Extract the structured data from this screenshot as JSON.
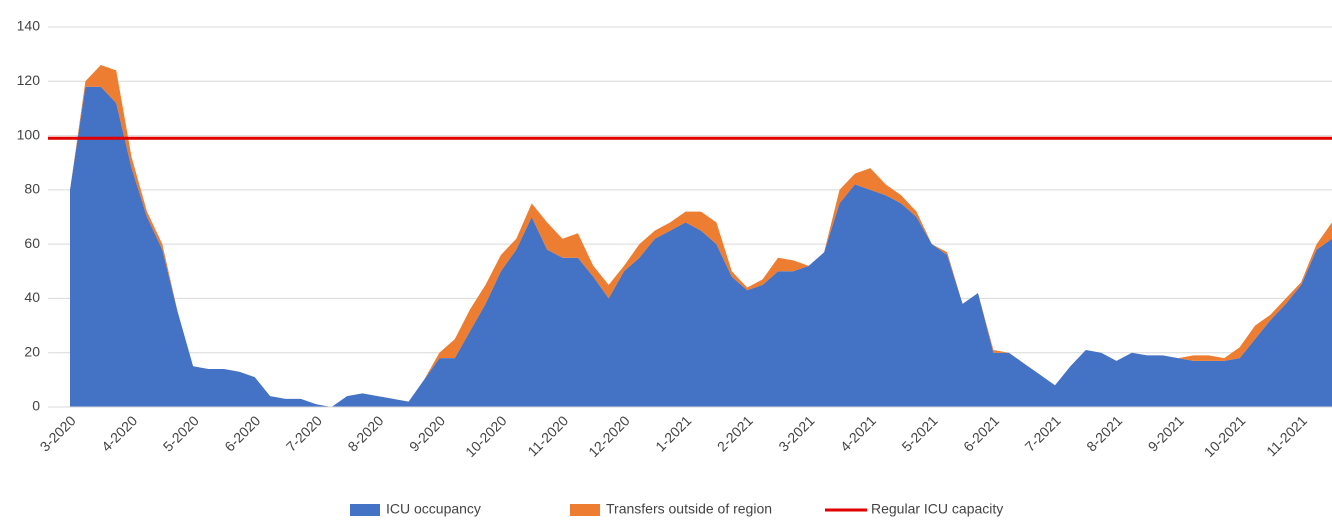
{
  "chart_data": {
    "type": "stacked-area",
    "categories": [
      "3-2020",
      null,
      null,
      null,
      "4-2020",
      null,
      null,
      null,
      "5-2020",
      null,
      null,
      null,
      "6-2020",
      null,
      null,
      null,
      "7-2020",
      null,
      null,
      null,
      "8-2020",
      null,
      null,
      null,
      "9-2020",
      null,
      null,
      null,
      "10-2020",
      null,
      null,
      null,
      "11-2020",
      null,
      null,
      null,
      "12-2020",
      null,
      null,
      null,
      "1-2021",
      null,
      null,
      null,
      "2-2021",
      null,
      null,
      null,
      "3-2021",
      null,
      null,
      null,
      "4-2021",
      null,
      null,
      null,
      "5-2021",
      null,
      null,
      null,
      "6-2021",
      null,
      null,
      null,
      "7-2021",
      null,
      null,
      null,
      "8-2021",
      null,
      null,
      null,
      "9-2021",
      null,
      null,
      null,
      "10-2021",
      null,
      null,
      null,
      "11-2021",
      null,
      null
    ],
    "series": [
      {
        "name": "ICU occupancy",
        "color": "#4472c4",
        "values": [
          80,
          118,
          118,
          112,
          88,
          70,
          58,
          35,
          15,
          14,
          14,
          13,
          11,
          4,
          3,
          3,
          1,
          0,
          4,
          5,
          4,
          3,
          2,
          10,
          18,
          18,
          28,
          38,
          50,
          58,
          70,
          58,
          55,
          55,
          48,
          40,
          50,
          55,
          62,
          65,
          68,
          65,
          60,
          48,
          43,
          45,
          50,
          50,
          52,
          57,
          75,
          82,
          80,
          78,
          75,
          70,
          60,
          56,
          38,
          42,
          20,
          20,
          16,
          12,
          8,
          15,
          21,
          20,
          17,
          20,
          19,
          19,
          18,
          17,
          17,
          17,
          18,
          25,
          32,
          38,
          45,
          58,
          62
        ]
      },
      {
        "name": "Transfers outside of region",
        "color": "#ed7d31",
        "values": [
          0,
          2,
          8,
          12,
          4,
          2,
          2,
          0,
          0,
          0,
          0,
          0,
          0,
          0,
          0,
          0,
          0,
          0,
          0,
          0,
          0,
          0,
          0,
          0,
          2,
          7,
          8,
          7,
          6,
          4,
          5,
          10,
          7,
          9,
          4,
          5,
          2,
          5,
          3,
          3,
          4,
          7,
          8,
          2,
          1,
          2,
          5,
          4,
          0,
          0,
          5,
          4,
          8,
          4,
          3,
          2,
          0,
          1,
          0,
          0,
          1,
          0,
          0,
          0,
          0,
          0,
          0,
          0,
          0,
          0,
          0,
          0,
          0,
          2,
          2,
          1,
          4,
          5,
          2,
          2,
          1,
          2,
          6
        ]
      }
    ],
    "reference_line": {
      "name": "Regular ICU capacity",
      "value": 99,
      "color": "#e00000"
    },
    "ylim": [
      0,
      140
    ],
    "yticks": [
      0,
      20,
      40,
      60,
      80,
      100,
      120,
      140
    ],
    "grid": true
  }
}
